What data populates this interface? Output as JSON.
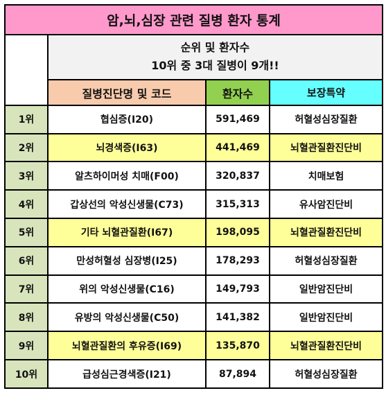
{
  "title": "암,뇌,심장 관련 질병 환자 통계",
  "summary": {
    "line1": "순위 및 환자수",
    "line2": "10위 중 3대 질병이 9개!!"
  },
  "headers": {
    "disease": "질병진단명 및 코드",
    "patients": "환자수",
    "coverage": "보장특약"
  },
  "colors": {
    "title_bg": "#ff99cc",
    "rank_bg": "#d8e4bc",
    "header_disease_bg": "#f8cbad",
    "header_patients_bg": "#92d050",
    "header_coverage_bg": "#66ffff",
    "highlight_row_bg": "#ffff99"
  },
  "rows": [
    {
      "rank": "1위",
      "disease": "협심증(I20)",
      "patients": "591,469",
      "coverage": "허혈성심장질환"
    },
    {
      "rank": "2위",
      "disease": "뇌경색증(I63)",
      "patients": "441,469",
      "coverage": "뇌혈관질환진단비"
    },
    {
      "rank": "3위",
      "disease": "알츠하이머성 치매(F00)",
      "patients": "320,837",
      "coverage": "치매보험"
    },
    {
      "rank": "4위",
      "disease": "갑상선의 악성신생물(C73)",
      "patients": "315,313",
      "coverage": "유사암진단비"
    },
    {
      "rank": "5위",
      "disease": "기타 뇌혈관질환(I67)",
      "patients": "198,095",
      "coverage": "뇌혈관질환진단비"
    },
    {
      "rank": "6위",
      "disease": "만성허혈성 심장병(I25)",
      "patients": "178,293",
      "coverage": "허혈성심장질환"
    },
    {
      "rank": "7위",
      "disease": "위의 악성신생물(C16)",
      "patients": "149,793",
      "coverage": "일반암진단비"
    },
    {
      "rank": "8위",
      "disease": "유방의 악성신생물(C50)",
      "patients": "141,382",
      "coverage": "일반암진단비"
    },
    {
      "rank": "9위",
      "disease": "뇌혈관질환의 후유증(I69)",
      "patients": "135,870",
      "coverage": "뇌혈관질환진단비"
    },
    {
      "rank": "10위",
      "disease": "급성심근경색증(I21)",
      "patients": "87,894",
      "coverage": "허혈성심장질환"
    }
  ]
}
